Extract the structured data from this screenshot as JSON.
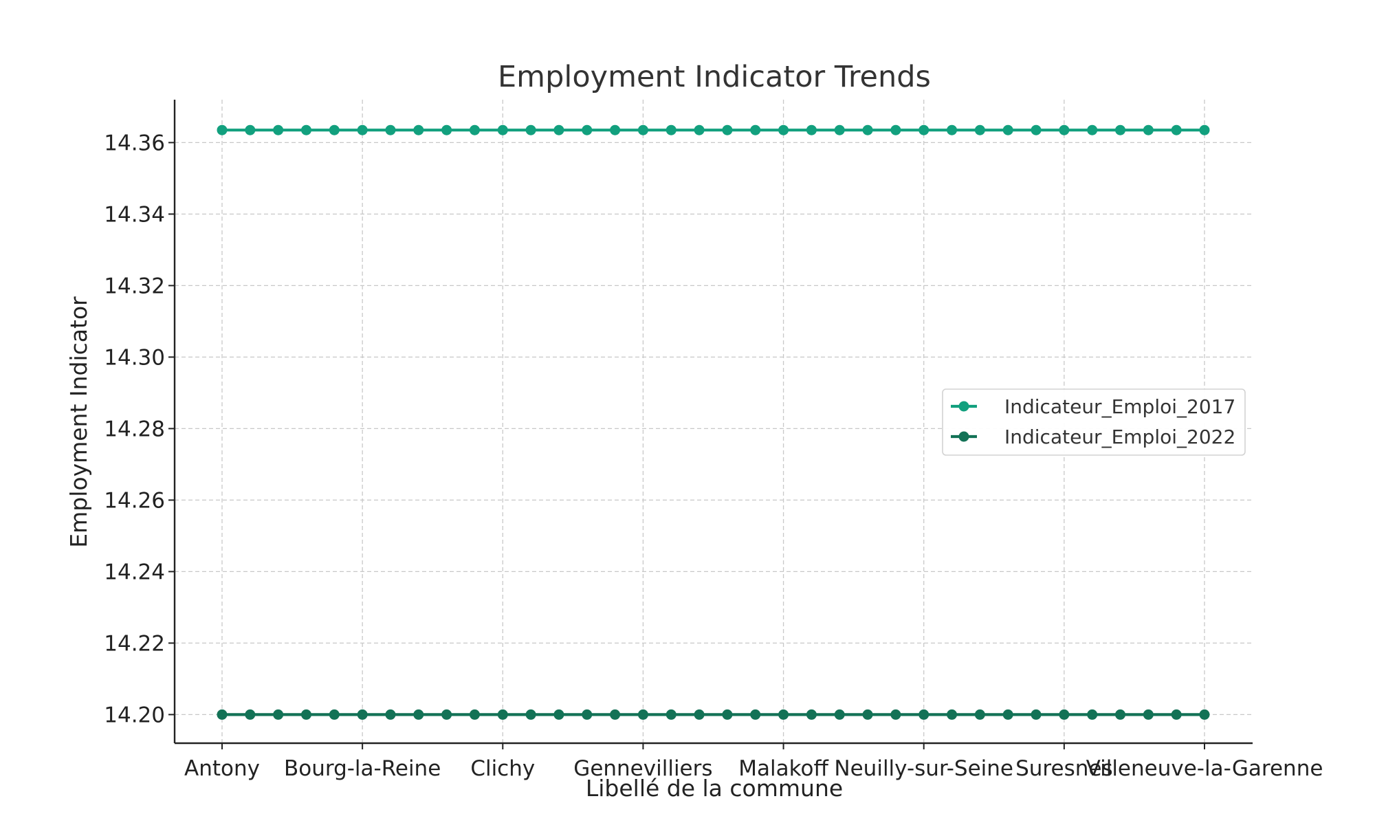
{
  "chart_data": {
    "type": "line",
    "title": "Employment Indicator Trends",
    "xlabel": "Libellé de la commune",
    "ylabel": "Employment Indicator",
    "ylim": [
      14.192,
      14.372
    ],
    "yticks": [
      "14.20",
      "14.22",
      "14.24",
      "14.26",
      "14.28",
      "14.30",
      "14.32",
      "14.34",
      "14.36"
    ],
    "x_tick_labels": [
      "Antony",
      "Bourg-la-Reine",
      "Clichy",
      "Gennevilliers",
      "Malakoff",
      "Neuilly-sur-Seine",
      "Suresnes",
      "Villeneuve-la-Garenne"
    ],
    "x_tick_positions": [
      0,
      5,
      10,
      15,
      20,
      25,
      30,
      35
    ],
    "n_points": 36,
    "grid": true,
    "legend_position": "center-right",
    "series": [
      {
        "name": "Indicateur_Emploi_2017",
        "color": "#12a07e",
        "values": [
          14.3635,
          14.3635,
          14.3635,
          14.3635,
          14.3635,
          14.3635,
          14.3635,
          14.3635,
          14.3635,
          14.3635,
          14.3635,
          14.3635,
          14.3635,
          14.3635,
          14.3635,
          14.3635,
          14.3635,
          14.3635,
          14.3635,
          14.3635,
          14.3635,
          14.3635,
          14.3635,
          14.3635,
          14.3635,
          14.3635,
          14.3635,
          14.3635,
          14.3635,
          14.3635,
          14.3635,
          14.3635,
          14.3635,
          14.3635,
          14.3635,
          14.3635
        ]
      },
      {
        "name": "Indicateur_Emploi_2022",
        "color": "#137256",
        "values": [
          14.2,
          14.2,
          14.2,
          14.2,
          14.2,
          14.2,
          14.2,
          14.2,
          14.2,
          14.2,
          14.2,
          14.2,
          14.2,
          14.2,
          14.2,
          14.2,
          14.2,
          14.2,
          14.2,
          14.2,
          14.2,
          14.2,
          14.2,
          14.2,
          14.2,
          14.2,
          14.2,
          14.2,
          14.2,
          14.2,
          14.2,
          14.2,
          14.2,
          14.2,
          14.2,
          14.2
        ]
      }
    ]
  }
}
